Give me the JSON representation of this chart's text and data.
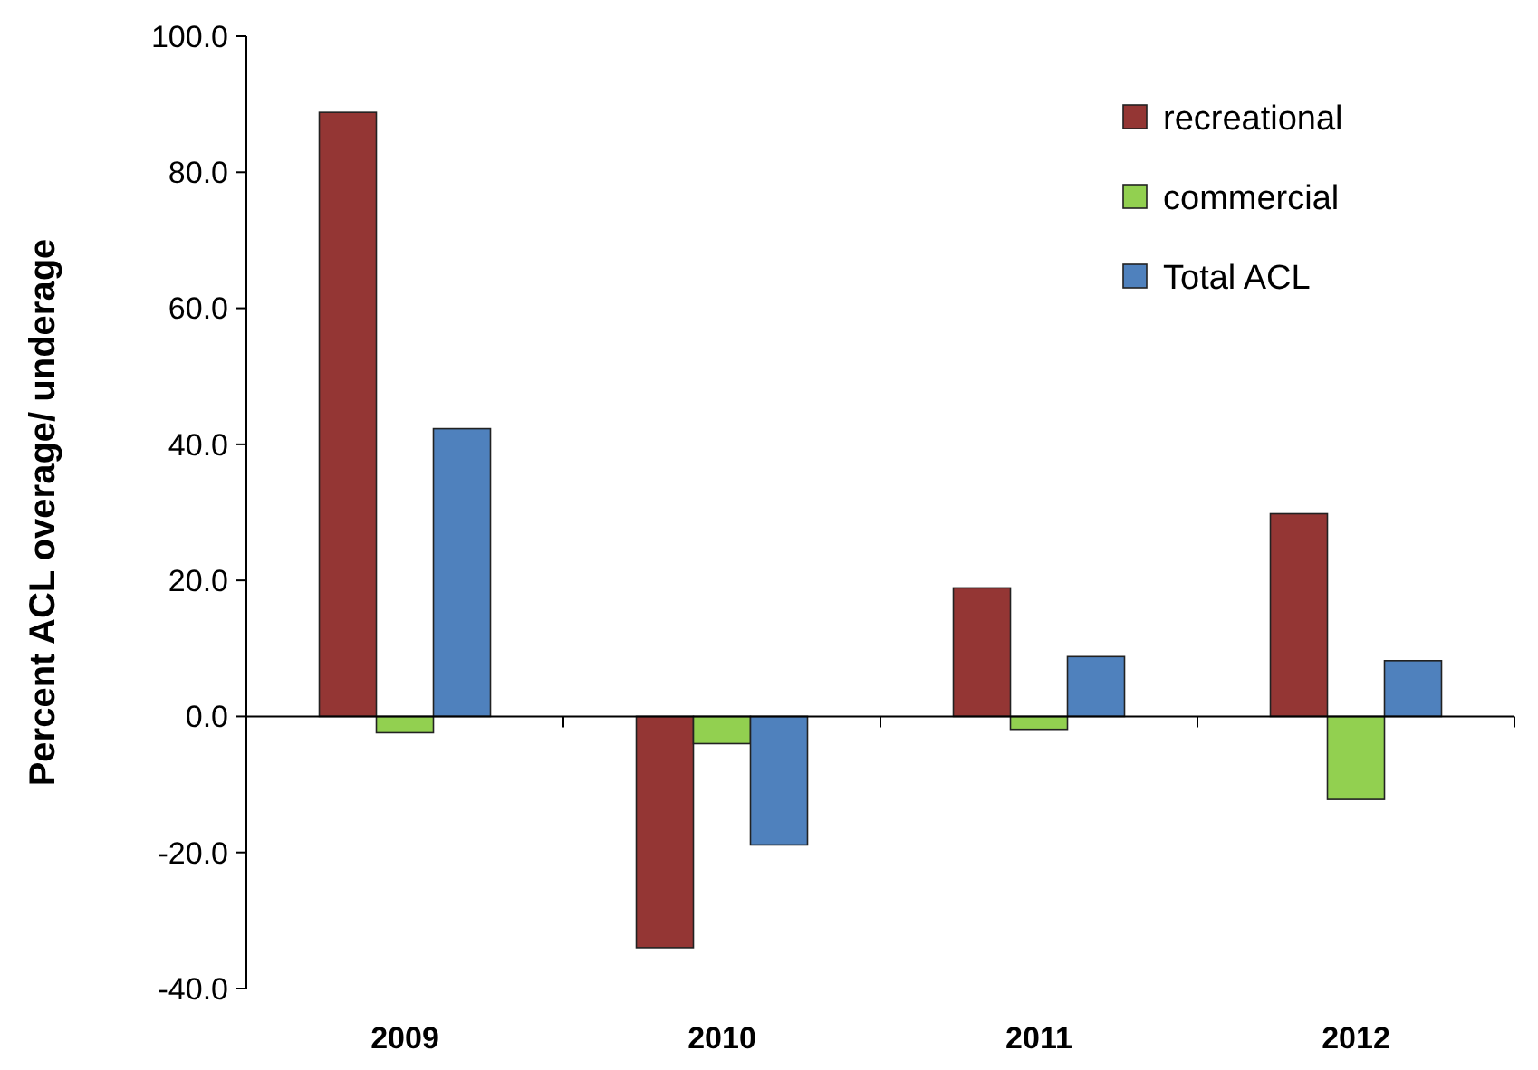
{
  "chart_data": {
    "type": "bar",
    "ylabel": "Percent ACL overage/ underage",
    "categories": [
      "2009",
      "2010",
      "2011",
      "2012"
    ],
    "series": [
      {
        "name": "recreational",
        "color": "#943634",
        "values": [
          88.8,
          -34.0,
          18.9,
          29.8
        ]
      },
      {
        "name": "commercial",
        "color": "#92d050",
        "values": [
          -2.4,
          -4.0,
          -1.9,
          -12.2
        ]
      },
      {
        "name": "Total ACL",
        "color": "#4f81bd",
        "values": [
          42.3,
          -18.9,
          8.8,
          8.2
        ]
      }
    ],
    "ylim": [
      -40,
      100
    ],
    "yticks": [
      {
        "value": -40,
        "label": "-40.0"
      },
      {
        "value": -20,
        "label": "-20.0"
      },
      {
        "value": 0,
        "label": "0.0"
      },
      {
        "value": 20,
        "label": "20.0"
      },
      {
        "value": 40,
        "label": "40.0"
      },
      {
        "value": 60,
        "label": "60.0"
      },
      {
        "value": 80,
        "label": "80.0"
      },
      {
        "value": 100,
        "label": "100.0"
      }
    ],
    "legend": "top right"
  }
}
